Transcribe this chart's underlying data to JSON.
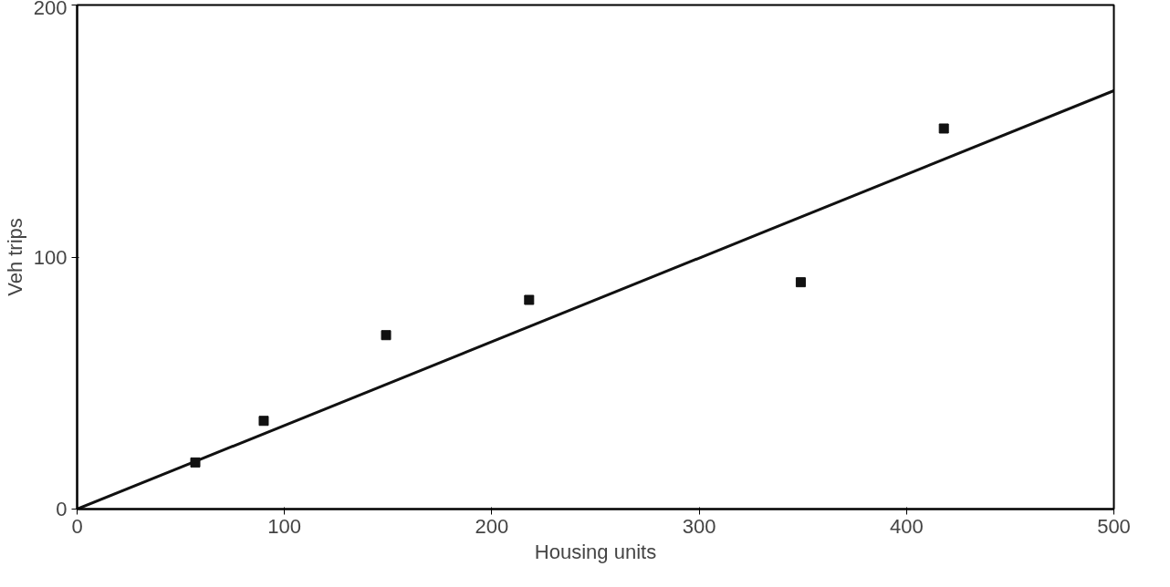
{
  "chart_data": {
    "type": "scatter",
    "xlabel": "Housing units",
    "ylabel": "Veh trips",
    "xlim": [
      0,
      500
    ],
    "ylim": [
      0,
      200
    ],
    "xticks": [
      0,
      100,
      200,
      300,
      400,
      500
    ],
    "yticks": [
      0,
      100,
      200
    ],
    "grid": false,
    "series": [
      {
        "marker": "square",
        "color": "#111111",
        "x": [
          57,
          90,
          149,
          218,
          349,
          418
        ],
        "values": [
          18.5,
          35,
          69,
          83,
          90,
          151
        ]
      },
      {
        "type": "line",
        "marker": "none",
        "color": "#111111",
        "x": [
          0,
          500
        ],
        "values": [
          0,
          166
        ]
      }
    ]
  }
}
